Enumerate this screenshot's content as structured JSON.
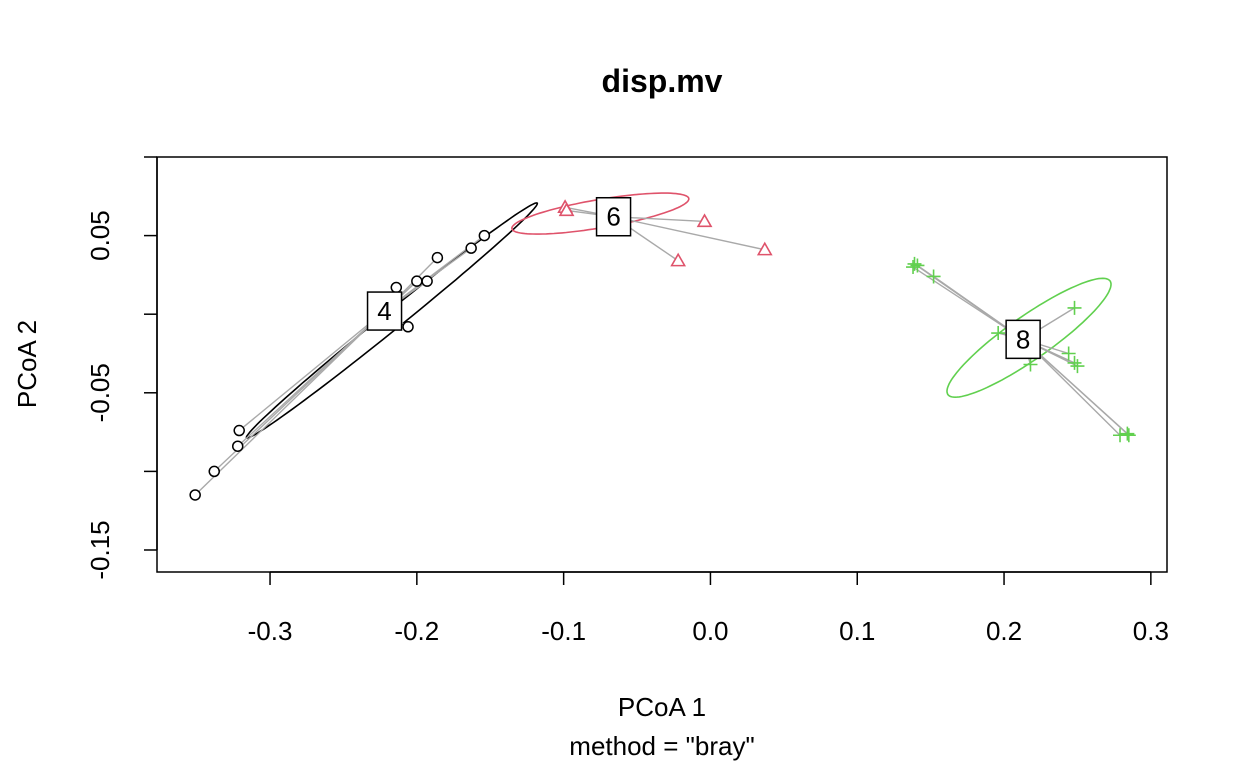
{
  "chart_data": {
    "type": "scatter",
    "title": "disp.mv",
    "xlabel": "PCoA 1",
    "ylabel": "PCoA 2",
    "sublabel": "method = \"bray\"",
    "xlim": [
      -0.377,
      0.311
    ],
    "ylim": [
      -0.164,
      0.1
    ],
    "xticks": [
      -0.3,
      -0.2,
      -0.1,
      0.0,
      0.1,
      0.2,
      0.3
    ],
    "xtick_labels": [
      "-0.3",
      "-0.2",
      "-0.1",
      "0.0",
      "0.1",
      "0.2",
      "0.3"
    ],
    "yticks": [
      -0.15,
      -0.1,
      -0.05,
      0.0,
      0.05,
      0.1
    ],
    "ytick_labels": [
      "-0.15",
      "",
      "-0.05",
      "",
      "0.05",
      ""
    ],
    "grid": false,
    "spoke_color": "#A9A9A9",
    "groups": [
      {
        "name": "4",
        "color": "#000000",
        "marker": "circle",
        "centroid": [
          -0.222,
          0.002
        ],
        "ellipse": {
          "cx": -0.217,
          "cy": -0.004,
          "rx": 0.124,
          "ry": 0.006,
          "angle_deg": 37
        },
        "points": [
          [
            -0.154,
            0.05
          ],
          [
            -0.163,
            0.042
          ],
          [
            -0.186,
            0.036
          ],
          [
            -0.193,
            0.021
          ],
          [
            -0.2,
            0.021
          ],
          [
            -0.214,
            0.017
          ],
          [
            -0.206,
            -0.008
          ],
          [
            -0.321,
            -0.074
          ],
          [
            -0.322,
            -0.084
          ],
          [
            -0.338,
            -0.1
          ],
          [
            -0.351,
            -0.115
          ]
        ]
      },
      {
        "name": "6",
        "color": "#DF536B",
        "marker": "triangle",
        "centroid": [
          -0.066,
          0.062
        ],
        "ellipse": {
          "cx": -0.075,
          "cy": 0.064,
          "rx": 0.061,
          "ry": 0.009,
          "angle_deg": 9
        },
        "points": [
          [
            -0.099,
            0.068
          ],
          [
            -0.098,
            0.066
          ],
          [
            -0.004,
            0.059
          ],
          [
            -0.022,
            0.034
          ],
          [
            0.037,
            0.041
          ]
        ]
      },
      {
        "name": "8",
        "color": "#61D04F",
        "marker": "plus",
        "centroid": [
          0.213,
          -0.016
        ],
        "ellipse": {
          "cx": 0.217,
          "cy": -0.015,
          "rx": 0.066,
          "ry": 0.014,
          "angle_deg": 33
        },
        "points": [
          [
            0.138,
            0.03
          ],
          [
            0.139,
            0.032
          ],
          [
            0.141,
            0.031
          ],
          [
            0.152,
            0.024
          ],
          [
            0.248,
            0.004
          ],
          [
            0.196,
            -0.012
          ],
          [
            0.244,
            -0.025
          ],
          [
            0.248,
            -0.031
          ],
          [
            0.218,
            -0.032
          ],
          [
            0.25,
            -0.033
          ],
          [
            0.279,
            -0.077
          ],
          [
            0.284,
            -0.076
          ],
          [
            0.285,
            -0.077
          ]
        ]
      }
    ]
  }
}
